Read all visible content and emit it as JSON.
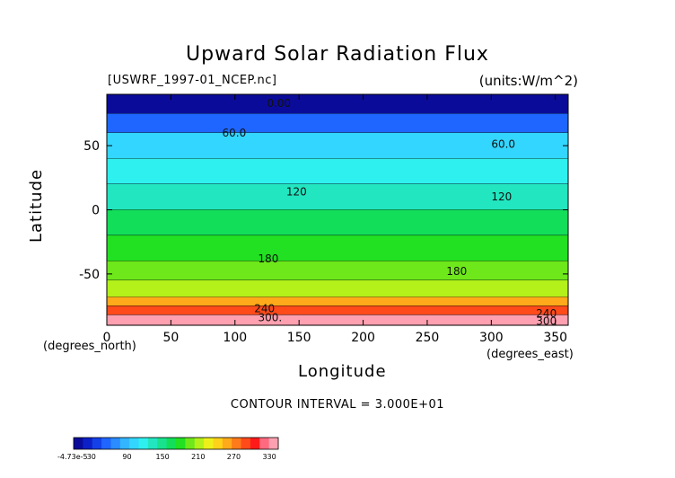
{
  "chart_data": {
    "type": "heatmap",
    "title": "Upward Solar Radiation Flux",
    "file_label": "[USWRF_1997-01_NCEP.nc]",
    "units_label": "(units:W/m^2)",
    "xlabel": "Longitude",
    "ylabel": "Latitude",
    "x_unit_label": "(degrees_east)",
    "y_unit_label": "(degrees_north)",
    "xlim": [
      0,
      360
    ],
    "ylim": [
      -90,
      90
    ],
    "x_ticks": [
      0,
      50,
      100,
      150,
      200,
      250,
      300,
      350
    ],
    "y_ticks": [
      50,
      0,
      -50
    ],
    "contour_interval_text": "CONTOUR INTERVAL = 3.000E+01",
    "contour_labels": [
      {
        "text": "0.00",
        "lon": 125,
        "lat": 83
      },
      {
        "text": "60.0",
        "lon": 90,
        "lat": 60
      },
      {
        "text": "60.0",
        "lon": 300,
        "lat": 51
      },
      {
        "text": "120",
        "lon": 140,
        "lat": 14
      },
      {
        "text": "120",
        "lon": 300,
        "lat": 10
      },
      {
        "text": "180",
        "lon": 118,
        "lat": -38
      },
      {
        "text": "180",
        "lon": 265,
        "lat": -48
      },
      {
        "text": "240",
        "lon": 115,
        "lat": -77
      },
      {
        "text": "300.",
        "lon": 118,
        "lat": -84
      },
      {
        "text": "240",
        "lon": 335,
        "lat": -81
      },
      {
        "text": "300",
        "lon": 335,
        "lat": -87
      }
    ],
    "lat_bands": [
      {
        "lat_top": 90,
        "lat_bottom": 75,
        "value": 0
      },
      {
        "lat_top": 75,
        "lat_bottom": 60,
        "value": 45
      },
      {
        "lat_top": 60,
        "lat_bottom": 40,
        "value": 95
      },
      {
        "lat_top": 40,
        "lat_bottom": 20,
        "value": 120
      },
      {
        "lat_top": 20,
        "lat_bottom": 0,
        "value": 135
      },
      {
        "lat_top": 0,
        "lat_bottom": -20,
        "value": 160
      },
      {
        "lat_top": -20,
        "lat_bottom": -40,
        "value": 175
      },
      {
        "lat_top": -40,
        "lat_bottom": -55,
        "value": 190
      },
      {
        "lat_top": -55,
        "lat_bottom": -68,
        "value": 215
      },
      {
        "lat_top": -68,
        "lat_bottom": -75,
        "value": 255
      },
      {
        "lat_top": -75,
        "lat_bottom": -82,
        "value": 300
      },
      {
        "lat_top": -82,
        "lat_bottom": -90,
        "value": 340
      }
    ],
    "colorbar": {
      "min_label": "-4.73e-5",
      "labels": [
        "30",
        "90",
        "150",
        "210",
        "270",
        "330"
      ],
      "colors": [
        "#0b0b9a",
        "#0d20c8",
        "#1440e8",
        "#1e66ff",
        "#2a8cff",
        "#33b6ff",
        "#33d6ff",
        "#2ef0ee",
        "#22e6c0",
        "#18e28e",
        "#12de5a",
        "#22e022",
        "#6ee81a",
        "#b4f01a",
        "#eef01a",
        "#ffd21a",
        "#ffaa1a",
        "#ff7a1a",
        "#ff4a1a",
        "#ff1a1a",
        "#ff6a80",
        "#ffa0b0"
      ]
    }
  }
}
